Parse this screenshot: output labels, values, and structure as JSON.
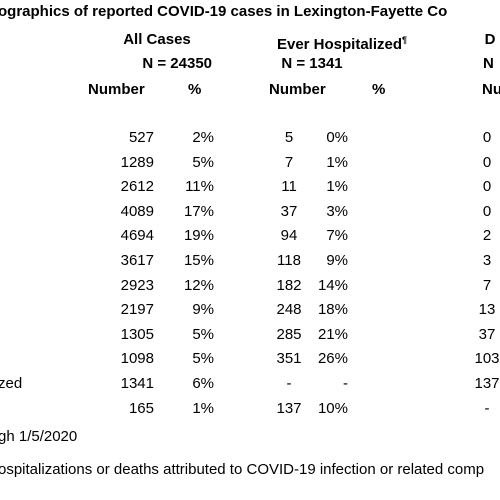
{
  "header": {
    "title": "ographics of reported COVID-19 cases in Lexington-Fayette Co"
  },
  "columns": {
    "groups": [
      {
        "name": "All Cases",
        "n": "N = 24350"
      },
      {
        "name": "Ever Hospitalized",
        "mark": "¶",
        "n": "N = 1341"
      },
      {
        "name": "D",
        "n": "N"
      }
    ],
    "subheaders": [
      "Number",
      "%",
      "Number",
      "%",
      "Numb"
    ]
  },
  "table": {
    "rows": [
      {
        "cells": [
          "527",
          "2%",
          "5",
          "0%",
          "0"
        ]
      },
      {
        "cells": [
          "1289",
          "5%",
          "7",
          "1%",
          "0"
        ]
      },
      {
        "cells": [
          "2612",
          "11%",
          "11",
          "1%",
          "0"
        ]
      },
      {
        "cells": [
          "4089",
          "17%",
          "37",
          "3%",
          "0"
        ]
      },
      {
        "cells": [
          "4694",
          "19%",
          "94",
          "7%",
          "2"
        ]
      },
      {
        "cells": [
          "3617",
          "15%",
          "118",
          "9%",
          "3"
        ]
      },
      {
        "cells": [
          "2923",
          "12%",
          "182",
          "14%",
          "7"
        ]
      },
      {
        "cells": [
          "2197",
          "9%",
          "248",
          "18%",
          "13"
        ]
      },
      {
        "cells": [
          "1305",
          "5%",
          "285",
          "21%",
          "37"
        ]
      },
      {
        "cells": [
          "1098",
          "5%",
          "351",
          "26%",
          "103"
        ]
      },
      {
        "label": "zed",
        "cells": [
          "1341",
          "6%",
          "-",
          "-",
          "137"
        ]
      },
      {
        "cells": [
          "165",
          "1%",
          "137",
          "10%",
          "-"
        ]
      }
    ]
  },
  "footnotes": [
    "gh 1/5/2020",
    "ospitalizations or deaths attributed to COVID-19 infection or related comp"
  ]
}
